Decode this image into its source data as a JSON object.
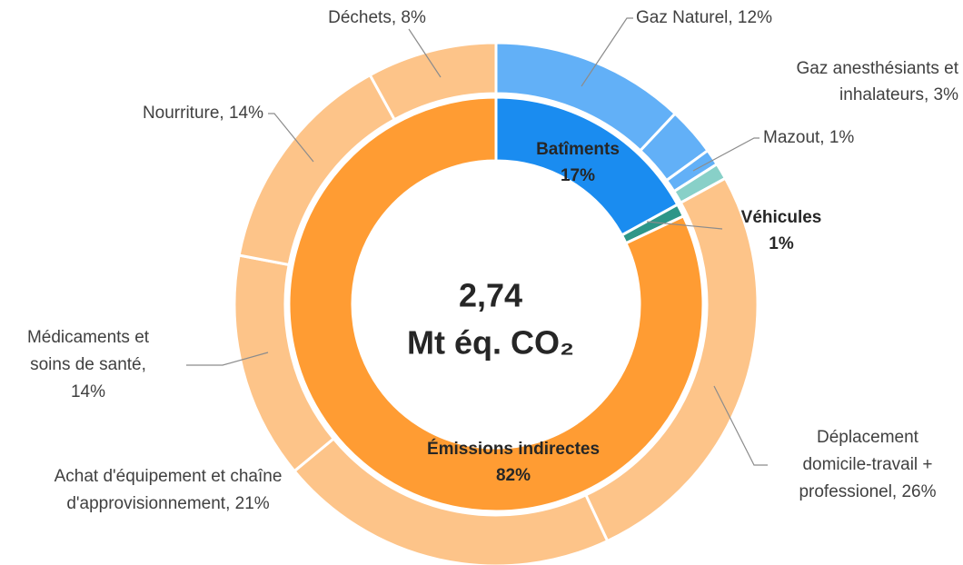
{
  "chart_data": {
    "type": "donut",
    "center_label": [
      "2,74",
      "Mt éq. CO₂"
    ],
    "inner": {
      "labels": [
        "Batîments",
        "Véhicules",
        "Émissions indirectes"
      ],
      "values": [
        17,
        1,
        82
      ],
      "value_labels": [
        "17%",
        "1%",
        "82%"
      ],
      "colors": [
        "#1a8cf0",
        "#2e9688",
        "#ff9c33"
      ]
    },
    "outer": {
      "labels": [
        [
          "Gaz Naturel, 12%"
        ],
        [
          "Gaz anesthésiants et",
          "inhalateurs, 3%"
        ],
        [
          "Mazout, 1%"
        ],
        null,
        [
          "Déplacement",
          "domicile-travail +",
          "professionel, 26%"
        ],
        [
          "Achat d'équipement et chaîne",
          "d'approvisionnement, 21%"
        ],
        [
          "Médicaments et",
          "soins de santé,",
          "14%"
        ],
        [
          "Nourriture, 14%"
        ],
        [
          "Déchets, 8%"
        ]
      ],
      "values": [
        12,
        3,
        1,
        1,
        26,
        21,
        14,
        14,
        8
      ],
      "colors": [
        "#62b0f7",
        "#62b0f7",
        "#62b0f7",
        "#88d0c8",
        "#fdc489",
        "#fdc489",
        "#fdc489",
        "#fdc489",
        "#fdc489"
      ]
    }
  }
}
